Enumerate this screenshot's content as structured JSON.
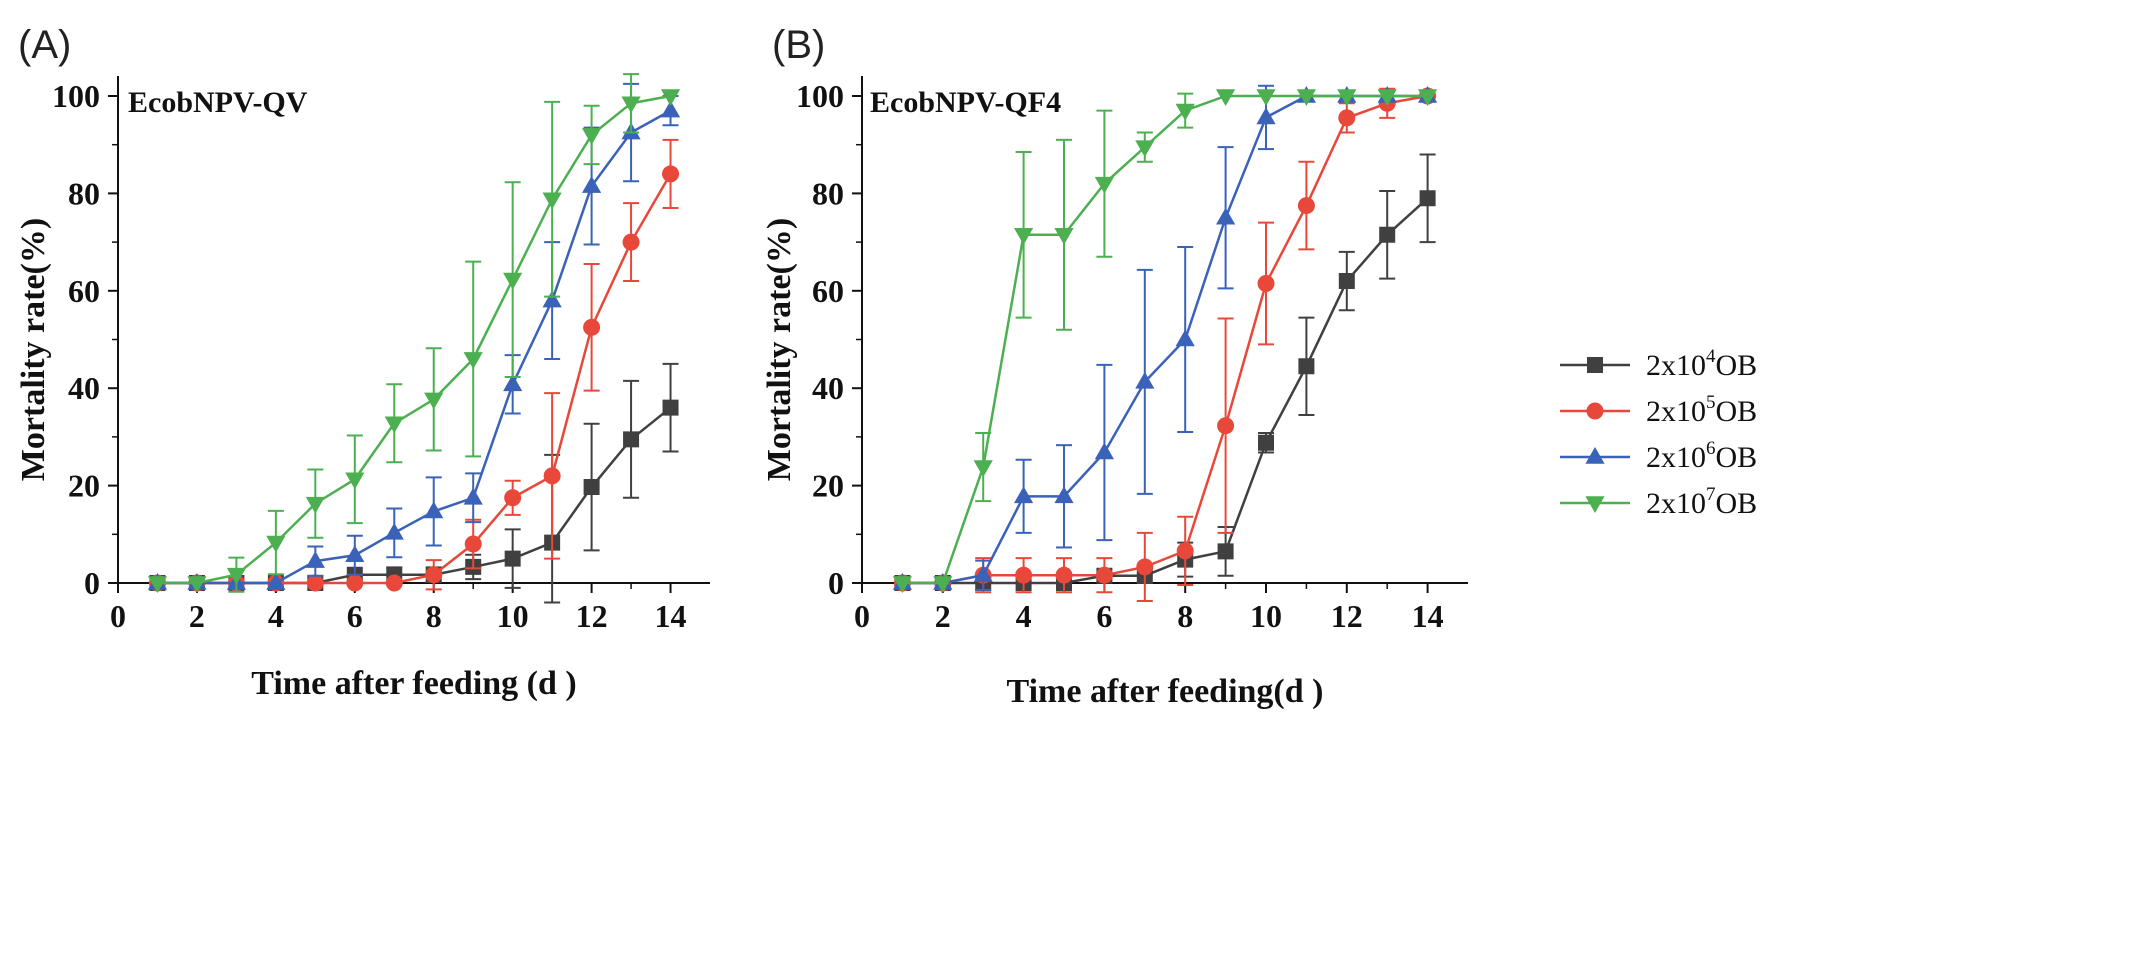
{
  "chart_data": [
    {
      "type": "line",
      "panel_label": "(A)",
      "inset_label": "EcobNPV-QV",
      "xlabel": "Time after feeding (d )",
      "ylabel": "Mortality rate(%)",
      "xlim": [
        0,
        15
      ],
      "ylim": [
        0,
        100
      ],
      "xticks": [
        "0",
        "2",
        "4",
        "6",
        "8",
        "10",
        "12",
        "14"
      ],
      "yticks": [
        "0",
        "20",
        "40",
        "60",
        "80",
        "100"
      ],
      "x": [
        1,
        2,
        3,
        4,
        5,
        6,
        7,
        8,
        9,
        10,
        11,
        12,
        13,
        14
      ],
      "series": [
        {
          "name": "2x10^4OB",
          "color": "#404040",
          "marker": "square",
          "values": [
            0,
            0,
            0,
            0,
            0,
            1.7,
            1.7,
            1.7,
            3.3,
            5,
            8.3,
            19.7,
            29.5,
            36
          ],
          "errors": [
            0,
            0,
            0,
            0,
            0,
            0,
            1.5,
            1.5,
            2.5,
            6,
            18,
            13,
            12,
            9
          ]
        },
        {
          "name": "2x10^5OB",
          "color": "#e8483a",
          "marker": "circle",
          "values": [
            0,
            0,
            0,
            0,
            0,
            0,
            0,
            1.7,
            8,
            17.5,
            22,
            52.5,
            70,
            84
          ],
          "errors": [
            0,
            0,
            0,
            0,
            0,
            0,
            0,
            3,
            5,
            3.5,
            17,
            13,
            8,
            7
          ]
        },
        {
          "name": "2x10^6OB",
          "color": "#3a62b8",
          "marker": "triangle-up",
          "values": [
            0,
            0,
            0,
            0,
            4.5,
            5.7,
            10.3,
            14.7,
            17.5,
            40.8,
            58,
            81.5,
            92.5,
            97
          ],
          "errors": [
            0,
            0,
            0,
            0,
            3,
            4,
            5,
            7,
            5,
            6,
            12,
            12,
            10,
            3
          ]
        },
        {
          "name": "2x10^7OB",
          "color": "#4caf50",
          "marker": "triangle-down",
          "values": [
            0,
            0,
            1.7,
            8.3,
            16.3,
            21.3,
            32.8,
            37.7,
            46,
            62.3,
            78.8,
            92,
            98.5,
            100
          ],
          "errors": [
            0,
            0,
            3.5,
            6.5,
            7,
            9,
            8,
            10.5,
            20,
            20,
            20,
            6,
            6,
            0
          ]
        }
      ]
    },
    {
      "type": "line",
      "panel_label": "(B)",
      "inset_label": "EcobNPV-QF4",
      "xlabel": "Time after feeding(d )",
      "ylabel": "Mortality rate(%)",
      "xlim": [
        0,
        15
      ],
      "ylim": [
        0,
        100
      ],
      "xticks": [
        "0",
        "2",
        "4",
        "6",
        "8",
        "10",
        "12",
        "14"
      ],
      "yticks": [
        "0",
        "20",
        "40",
        "60",
        "80",
        "100"
      ],
      "legend_position": "center-right",
      "x": [
        1,
        2,
        3,
        4,
        5,
        6,
        7,
        8,
        9,
        10,
        11,
        12,
        13,
        14
      ],
      "series": [
        {
          "name": "2x10^4OB",
          "color": "#404040",
          "marker": "square",
          "values": [
            0,
            0,
            0,
            0,
            0,
            1.5,
            1.5,
            4.8,
            6.5,
            28.8,
            44.5,
            62,
            71.5,
            79
          ],
          "errors": [
            0,
            0,
            0,
            0,
            0,
            0,
            1.5,
            3.5,
            5,
            2,
            10,
            6,
            9,
            9
          ]
        },
        {
          "name": "2x10^5OB",
          "color": "#e8483a",
          "marker": "circle",
          "values": [
            0,
            0,
            1.6,
            1.6,
            1.6,
            1.6,
            3.3,
            6.6,
            32.3,
            61.5,
            77.5,
            95.5,
            98.5,
            100
          ],
          "errors": [
            0,
            0,
            3.5,
            3.5,
            3.5,
            3.5,
            7,
            7,
            22,
            12.5,
            9,
            3,
            3,
            0
          ]
        },
        {
          "name": "2x10^6OB",
          "color": "#3a62b8",
          "marker": "triangle-up",
          "values": [
            0,
            0,
            1.6,
            17.8,
            17.8,
            26.8,
            41.3,
            50,
            75,
            95.6,
            100,
            100,
            100,
            100
          ],
          "errors": [
            0,
            0,
            3,
            7.5,
            10.5,
            18,
            23,
            19,
            14.5,
            6.5,
            0,
            0,
            0,
            0
          ]
        },
        {
          "name": "2x10^7OB",
          "color": "#4caf50",
          "marker": "triangle-down",
          "values": [
            0,
            0,
            23.8,
            71.5,
            71.5,
            82,
            89.5,
            97,
            100,
            100,
            100,
            100,
            100,
            100
          ],
          "errors": [
            0,
            0,
            7,
            17,
            19.5,
            15,
            3,
            3.5,
            0,
            0,
            0,
            0,
            0,
            0
          ]
        }
      ]
    }
  ],
  "legend": {
    "entries": [
      {
        "base": "2x10",
        "exp": "4",
        "unit": "OB",
        "color": "#404040",
        "marker": "square"
      },
      {
        "base": "2x10",
        "exp": "5",
        "unit": "OB",
        "color": "#e8483a",
        "marker": "circle"
      },
      {
        "base": "2x10",
        "exp": "6",
        "unit": "OB",
        "color": "#3a62b8",
        "marker": "triangle-up"
      },
      {
        "base": "2x10",
        "exp": "7",
        "unit": "OB",
        "color": "#4caf50",
        "marker": "triangle-down"
      }
    ]
  }
}
